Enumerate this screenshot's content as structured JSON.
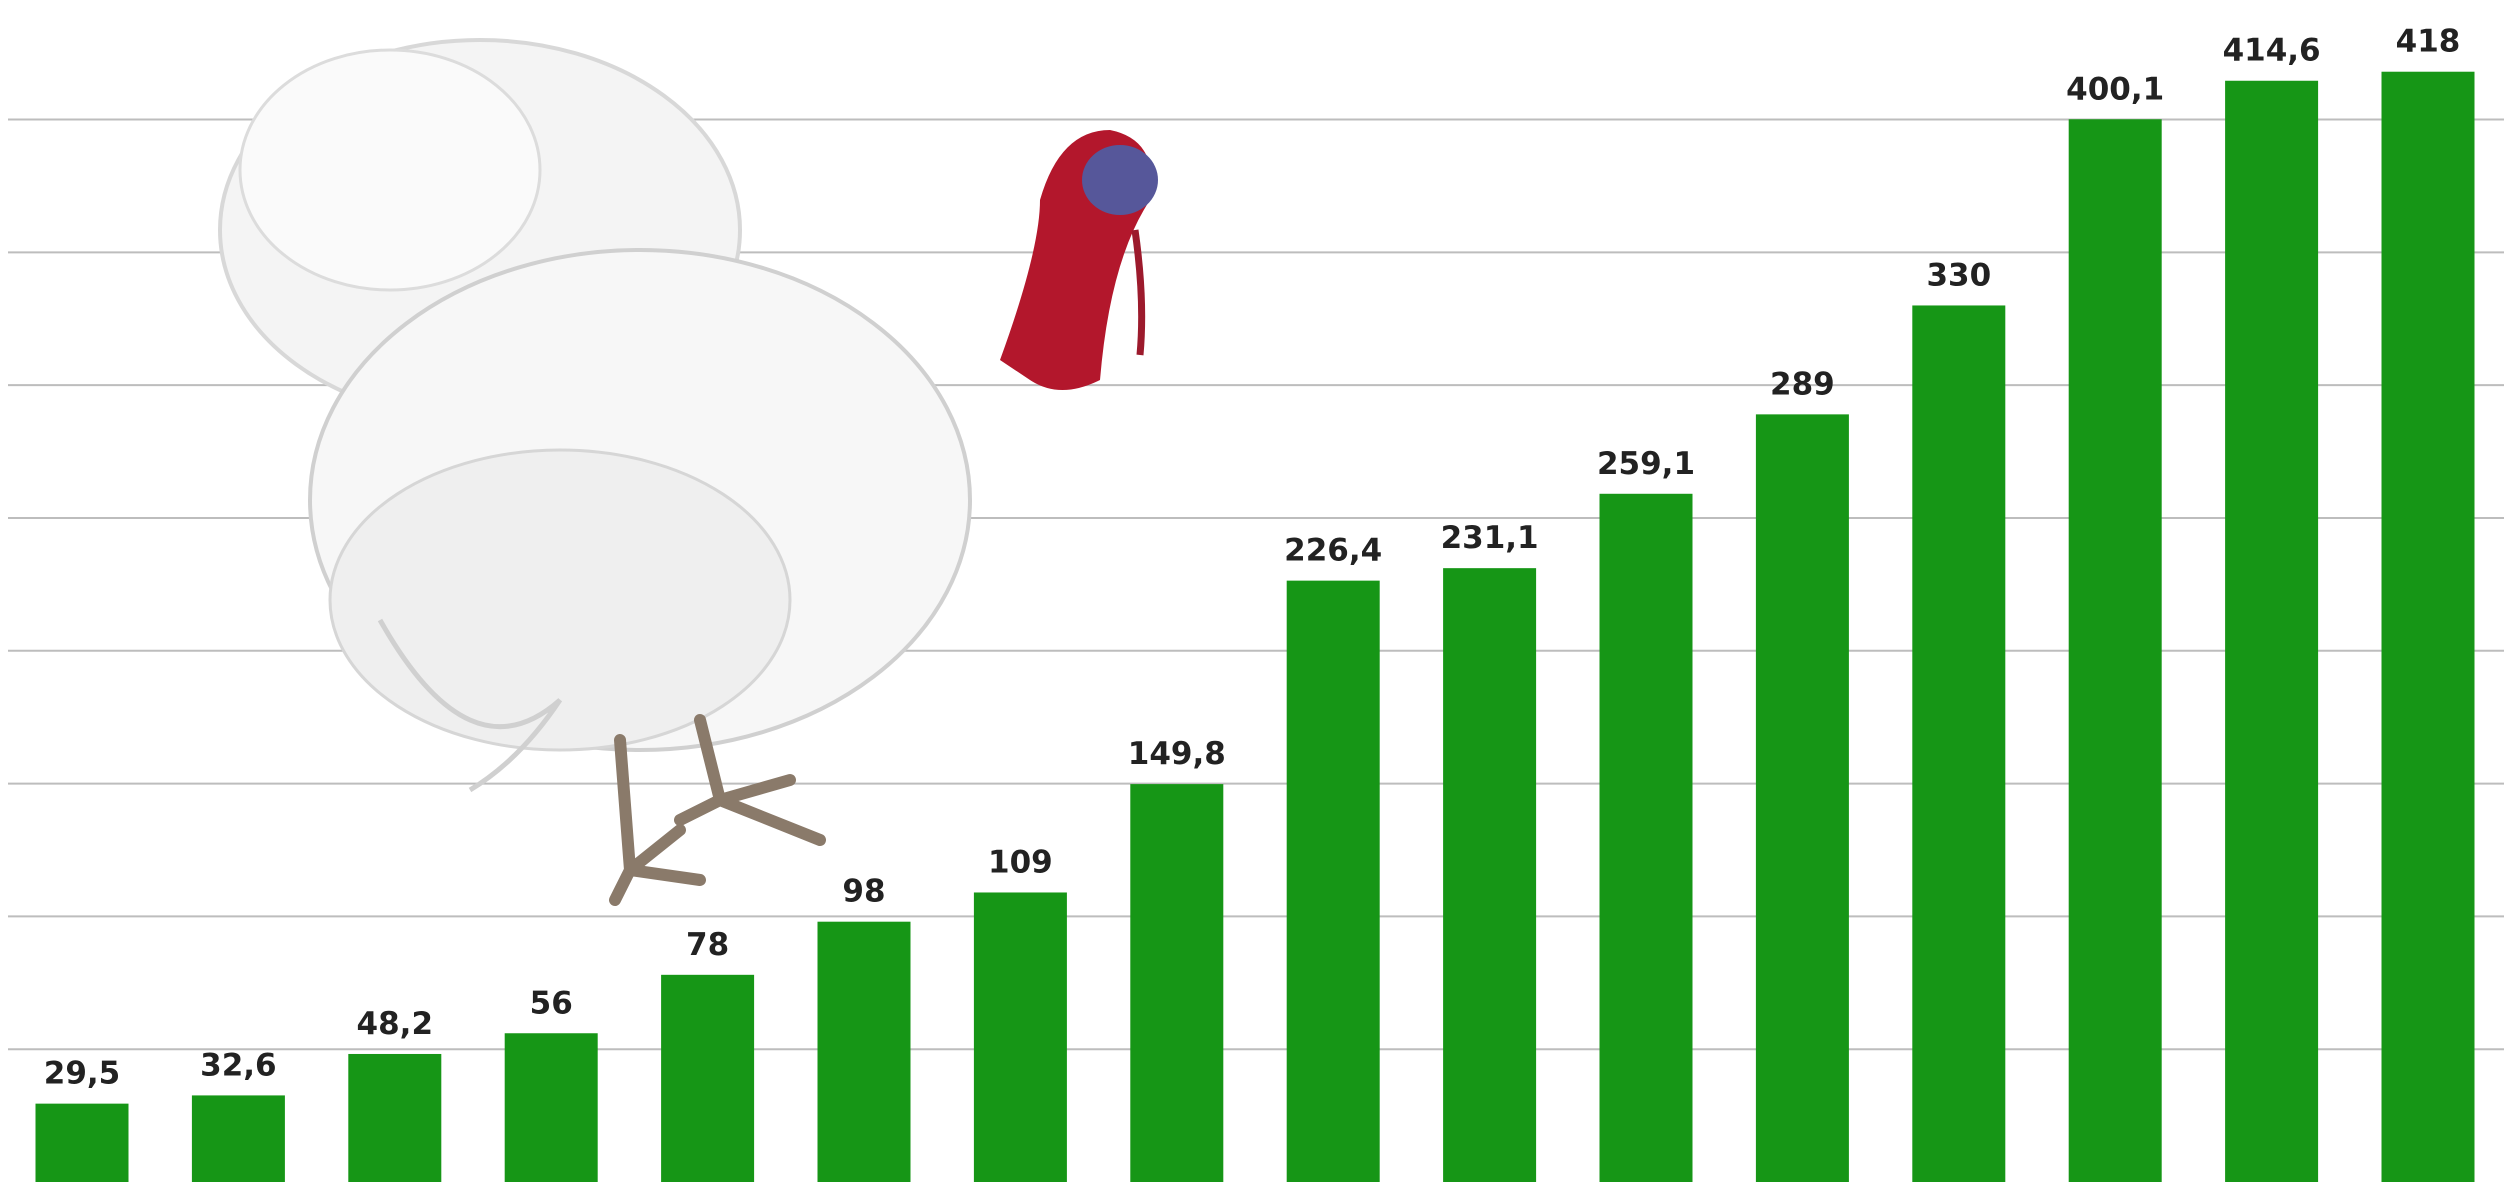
{
  "chart_data": {
    "type": "bar",
    "categories": [
      null,
      null,
      null,
      null,
      null,
      null,
      null,
      null,
      null,
      null,
      null,
      null,
      null,
      null,
      null,
      null
    ],
    "values": [
      29.5,
      32.6,
      48.2,
      56,
      78,
      98,
      109,
      149.8,
      226.4,
      231.1,
      259.1,
      289,
      330,
      400.1,
      414.6,
      418
    ],
    "value_labels": [
      "29,5",
      "32,6",
      "48,2",
      "56",
      "78",
      "98",
      "109",
      "149,8",
      "226,4",
      "231,1",
      "259,1",
      "289",
      "330",
      "400,1",
      "414,6",
      "418"
    ],
    "color": "#169616",
    "ylim": [
      0,
      445
    ],
    "yticks": [
      50,
      100,
      150,
      200,
      250,
      300,
      350,
      400
    ],
    "grid": true
  }
}
